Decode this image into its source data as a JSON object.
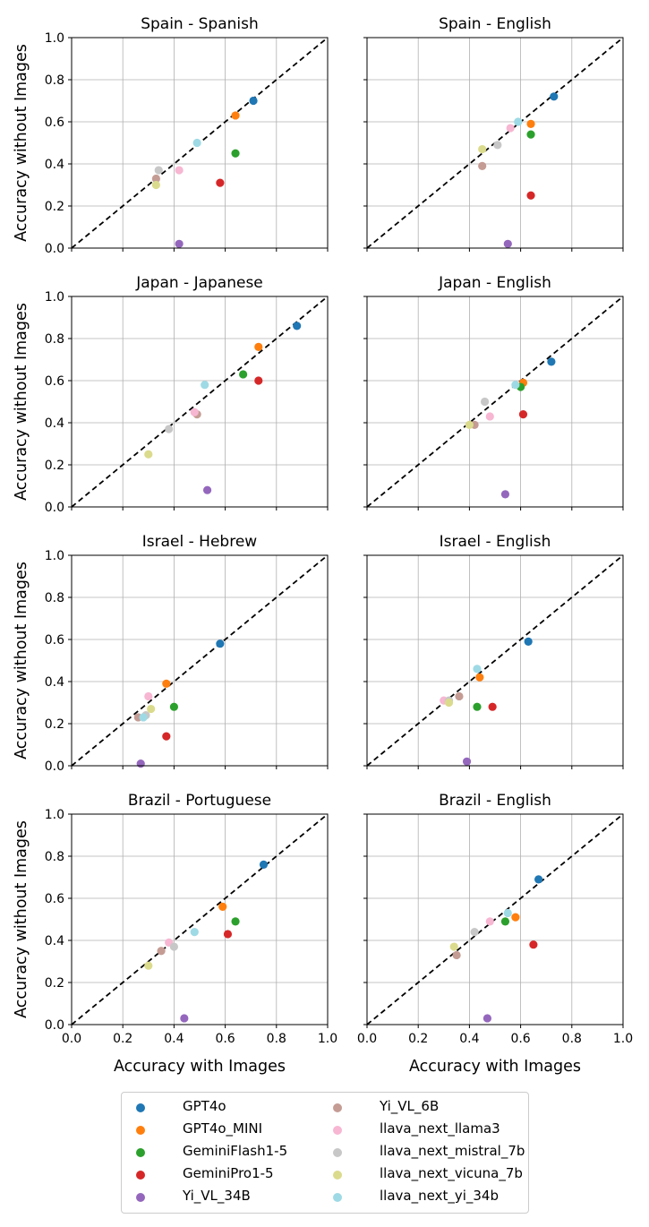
{
  "chart_data": {
    "type": "scatter",
    "layout": "4x2 grid",
    "xlabel": "Accuracy with Images",
    "ylabel": "Accuracy without Images",
    "xlim": [
      0,
      1
    ],
    "ylim": [
      0,
      1
    ],
    "xticks": [
      "0.0",
      "0.2",
      "0.4",
      "0.6",
      "0.8",
      "1.0"
    ],
    "yticks": [
      "0.0",
      "0.2",
      "0.4",
      "0.6",
      "0.8",
      "1.0"
    ],
    "grid": true,
    "diagonal": "y = x (dashed black)",
    "legend_placement": "bottom-center, 2 columns",
    "series": [
      {
        "name": "GPT4o",
        "color": "#1f77b4"
      },
      {
        "name": "GPT4o_MINI",
        "color": "#ff7f0e"
      },
      {
        "name": "GeminiFlash1-5",
        "color": "#2ca02c"
      },
      {
        "name": "GeminiPro1-5",
        "color": "#d62728"
      },
      {
        "name": "Yi_VL_34B",
        "color": "#9467bd"
      },
      {
        "name": "Yi_VL_6B",
        "color": "#c49c94"
      },
      {
        "name": "llava_next_llama3",
        "color": "#f7b6d2"
      },
      {
        "name": "llava_next_mistral_7b",
        "color": "#c7c7c7"
      },
      {
        "name": "llava_next_vicuna_7b",
        "color": "#dbdb8d"
      },
      {
        "name": "llava_next_yi_34b",
        "color": "#9edae5"
      }
    ],
    "panels": [
      {
        "title": "Spain - Spanish",
        "points": [
          [
            0.71,
            0.7
          ],
          [
            0.64,
            0.63
          ],
          [
            0.64,
            0.45
          ],
          [
            0.58,
            0.31
          ],
          [
            0.42,
            0.02
          ],
          [
            0.33,
            0.33
          ],
          [
            0.42,
            0.37
          ],
          [
            0.34,
            0.37
          ],
          [
            0.33,
            0.3
          ],
          [
            0.49,
            0.5
          ]
        ]
      },
      {
        "title": "Spain - English",
        "points": [
          [
            0.73,
            0.72
          ],
          [
            0.64,
            0.59
          ],
          [
            0.64,
            0.54
          ],
          [
            0.64,
            0.25
          ],
          [
            0.55,
            0.02
          ],
          [
            0.45,
            0.39
          ],
          [
            0.56,
            0.57
          ],
          [
            0.51,
            0.49
          ],
          [
            0.45,
            0.47
          ],
          [
            0.59,
            0.6
          ]
        ]
      },
      {
        "title": "Japan - Japanese",
        "points": [
          [
            0.88,
            0.86
          ],
          [
            0.73,
            0.76
          ],
          [
            0.67,
            0.63
          ],
          [
            0.73,
            0.6
          ],
          [
            0.53,
            0.08
          ],
          [
            0.49,
            0.44
          ],
          [
            0.48,
            0.45
          ],
          [
            0.38,
            0.37
          ],
          [
            0.3,
            0.25
          ],
          [
            0.52,
            0.58
          ]
        ]
      },
      {
        "title": "Japan - English",
        "points": [
          [
            0.72,
            0.69
          ],
          [
            0.61,
            0.59
          ],
          [
            0.6,
            0.57
          ],
          [
            0.61,
            0.44
          ],
          [
            0.54,
            0.06
          ],
          [
            0.42,
            0.39
          ],
          [
            0.48,
            0.43
          ],
          [
            0.46,
            0.5
          ],
          [
            0.4,
            0.39
          ],
          [
            0.58,
            0.58
          ]
        ]
      },
      {
        "title": "Israel - Hebrew",
        "points": [
          [
            0.58,
            0.58
          ],
          [
            0.37,
            0.39
          ],
          [
            0.4,
            0.28
          ],
          [
            0.37,
            0.14
          ],
          [
            0.27,
            0.01
          ],
          [
            0.26,
            0.23
          ],
          [
            0.3,
            0.33
          ],
          [
            0.29,
            0.24
          ],
          [
            0.31,
            0.27
          ],
          [
            0.28,
            0.23
          ]
        ]
      },
      {
        "title": "Israel - English",
        "points": [
          [
            0.63,
            0.59
          ],
          [
            0.44,
            0.42
          ],
          [
            0.43,
            0.28
          ],
          [
            0.49,
            0.28
          ],
          [
            0.39,
            0.02
          ],
          [
            0.36,
            0.33
          ],
          [
            0.3,
            0.31
          ],
          [
            0.32,
            0.31
          ],
          [
            0.32,
            0.3
          ],
          [
            0.43,
            0.46
          ]
        ]
      },
      {
        "title": "Brazil - Portuguese",
        "points": [
          [
            0.75,
            0.76
          ],
          [
            0.59,
            0.56
          ],
          [
            0.64,
            0.49
          ],
          [
            0.61,
            0.43
          ],
          [
            0.44,
            0.03
          ],
          [
            0.35,
            0.35
          ],
          [
            0.38,
            0.39
          ],
          [
            0.4,
            0.37
          ],
          [
            0.3,
            0.28
          ],
          [
            0.48,
            0.44
          ]
        ]
      },
      {
        "title": "Brazil - English",
        "points": [
          [
            0.67,
            0.69
          ],
          [
            0.58,
            0.51
          ],
          [
            0.54,
            0.49
          ],
          [
            0.65,
            0.38
          ],
          [
            0.47,
            0.03
          ],
          [
            0.35,
            0.33
          ],
          [
            0.48,
            0.49
          ],
          [
            0.42,
            0.44
          ],
          [
            0.34,
            0.37
          ],
          [
            0.55,
            0.53
          ]
        ]
      }
    ]
  }
}
